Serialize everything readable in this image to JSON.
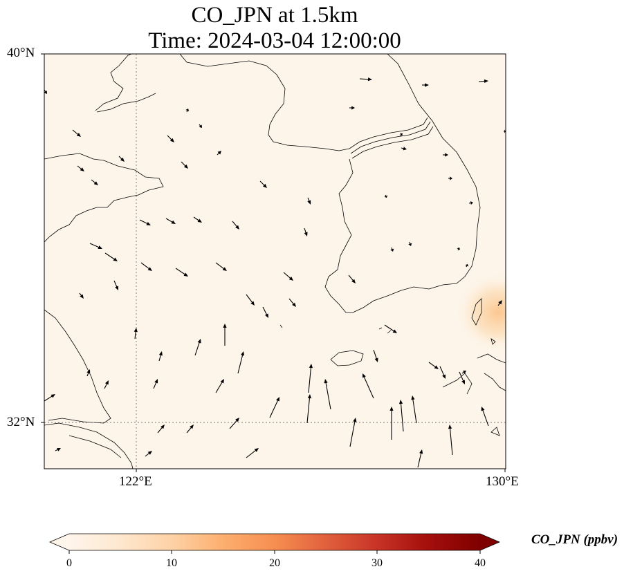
{
  "title_line1": "CO_JPN at 1.5km",
  "title_line2": "Time: 2024-03-04 12:00:00",
  "lat_labels": [
    "40°N",
    "32°N"
  ],
  "lon_labels": [
    "122°E",
    "130°E"
  ],
  "colorbar": {
    "label": "CO_JPN (ppbv)",
    "ticks": [
      "0",
      "10",
      "20",
      "30",
      "40"
    ],
    "min": 0,
    "max": 40,
    "extend": "both",
    "colors": [
      "#fff5eb",
      "#fee6ce",
      "#fdd0a2",
      "#fdae6b",
      "#fd8d3c",
      "#f16913",
      "#d94801",
      "#a63603",
      "#7f2704",
      "#5a1500"
    ]
  },
  "map": {
    "extent": {
      "lon_min": 120,
      "lon_max": 130,
      "lat_min": 31,
      "lat_max": 40
    },
    "background_color": "#fdf5ea",
    "gridlines": {
      "lon": [
        122
      ],
      "lat": [
        32
      ]
    },
    "hotspot_color": "#fcd4a4",
    "wind_vectors": "arrows"
  }
}
